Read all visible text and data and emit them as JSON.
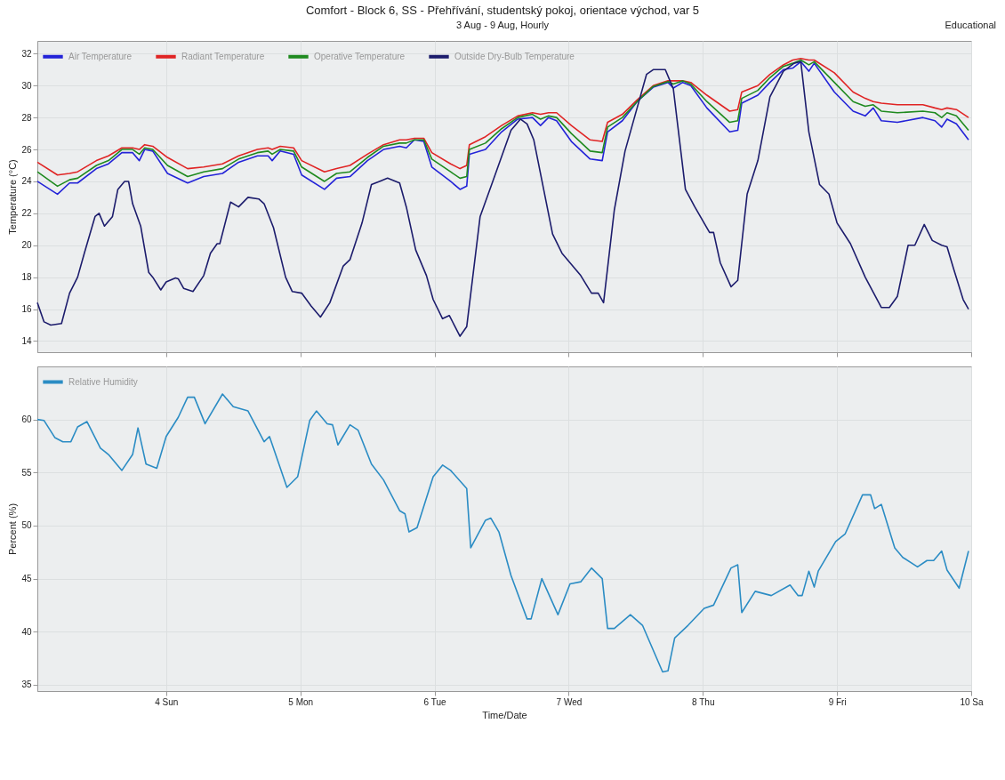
{
  "chart_data": [
    {
      "type": "line",
      "title": "Comfort - Block 6, SS - Přehřívání, studentský pokoj, orientace východ, var 5",
      "subtitle": "3 Aug - 9 Aug, Hourly",
      "annotations": [
        "Educational"
      ],
      "ylabel": "Temperature (°C)",
      "xlim": [
        3.04,
        10
      ],
      "xticks": [
        {
          "value": 4,
          "label": null
        },
        {
          "value": 5,
          "label": null
        },
        {
          "value": 6,
          "label": null
        },
        {
          "value": 7,
          "label": null
        },
        {
          "value": 8,
          "label": null
        },
        {
          "value": 9,
          "label": null
        },
        {
          "value": 10,
          "label": null
        }
      ],
      "ylim": [
        13.3,
        32.8
      ],
      "yticks": [
        14,
        16,
        18,
        20,
        22,
        24,
        26,
        28,
        30,
        32
      ],
      "tick_labels": "y",
      "grid": true,
      "legend": "top left",
      "series": [
        {
          "name": "Air Temperature",
          "color": "#2323d8",
          "x": [
            3.04,
            3.19,
            3.28,
            3.34,
            3.48,
            3.57,
            3.67,
            3.75,
            3.8,
            3.84,
            3.9,
            4.01,
            4.16,
            4.28,
            4.42,
            4.54,
            4.68,
            4.76,
            4.79,
            4.85,
            4.95,
            5.01,
            5.18,
            5.27,
            5.37,
            5.5,
            5.62,
            5.74,
            5.79,
            5.85,
            5.92,
            5.98,
            6.12,
            6.19,
            6.24,
            6.26,
            6.38,
            6.5,
            6.62,
            6.73,
            6.79,
            6.85,
            6.91,
            7.02,
            7.16,
            7.25,
            7.29,
            7.4,
            7.51,
            7.63,
            7.74,
            7.78,
            7.85,
            7.91,
            8.03,
            8.2,
            8.26,
            8.29,
            8.41,
            8.5,
            8.6,
            8.67,
            8.73,
            8.79,
            8.83,
            8.98,
            9.12,
            9.21,
            9.27,
            9.33,
            9.45,
            9.64,
            9.73,
            9.78,
            9.82,
            9.89,
            9.98
          ],
          "values": [
            24.0,
            23.2,
            23.9,
            23.9,
            24.8,
            25.1,
            25.8,
            25.8,
            25.3,
            26.0,
            25.9,
            24.5,
            23.9,
            24.3,
            24.5,
            25.2,
            25.6,
            25.6,
            25.3,
            25.9,
            25.7,
            24.4,
            23.5,
            24.2,
            24.3,
            25.3,
            26.0,
            26.2,
            26.1,
            26.6,
            26.5,
            24.9,
            24.0,
            23.5,
            23.7,
            25.7,
            26.0,
            27.1,
            27.9,
            28.0,
            27.5,
            28.0,
            27.8,
            26.5,
            25.4,
            25.3,
            27.1,
            27.8,
            29.0,
            29.9,
            30.2,
            29.85,
            30.2,
            30.0,
            28.6,
            27.1,
            27.2,
            28.9,
            29.4,
            30.2,
            31.0,
            31.1,
            31.5,
            30.9,
            31.4,
            29.6,
            28.4,
            28.1,
            28.6,
            27.8,
            27.7,
            28.0,
            27.8,
            27.4,
            27.9,
            27.6,
            26.6
          ]
        },
        {
          "name": "Radiant Temperature",
          "color": "#e02424",
          "x": [
            3.04,
            3.19,
            3.28,
            3.34,
            3.48,
            3.57,
            3.67,
            3.75,
            3.8,
            3.84,
            3.9,
            4.01,
            4.16,
            4.28,
            4.42,
            4.54,
            4.68,
            4.76,
            4.79,
            4.85,
            4.95,
            5.01,
            5.18,
            5.27,
            5.37,
            5.5,
            5.62,
            5.74,
            5.79,
            5.85,
            5.92,
            5.98,
            6.12,
            6.19,
            6.24,
            6.26,
            6.38,
            6.5,
            6.62,
            6.73,
            6.79,
            6.85,
            6.91,
            7.02,
            7.16,
            7.25,
            7.29,
            7.4,
            7.51,
            7.63,
            7.74,
            7.78,
            7.85,
            7.91,
            8.03,
            8.2,
            8.26,
            8.29,
            8.41,
            8.5,
            8.6,
            8.67,
            8.73,
            8.79,
            8.83,
            8.98,
            9.12,
            9.21,
            9.27,
            9.33,
            9.45,
            9.64,
            9.73,
            9.78,
            9.82,
            9.89,
            9.98
          ],
          "values": [
            25.2,
            24.4,
            24.5,
            24.6,
            25.3,
            25.6,
            26.1,
            26.1,
            26.0,
            26.3,
            26.2,
            25.5,
            24.8,
            24.9,
            25.1,
            25.6,
            26.0,
            26.1,
            26.0,
            26.2,
            26.1,
            25.3,
            24.6,
            24.8,
            25.0,
            25.7,
            26.3,
            26.6,
            26.6,
            26.7,
            26.7,
            25.8,
            25.1,
            24.8,
            25.0,
            26.3,
            26.8,
            27.5,
            28.1,
            28.3,
            28.2,
            28.3,
            28.3,
            27.5,
            26.6,
            26.5,
            27.7,
            28.2,
            29.1,
            30.0,
            30.3,
            30.3,
            30.3,
            30.2,
            29.4,
            28.4,
            28.5,
            29.6,
            30.0,
            30.7,
            31.3,
            31.6,
            31.7,
            31.6,
            31.6,
            30.8,
            29.6,
            29.2,
            29.0,
            28.9,
            28.8,
            28.8,
            28.6,
            28.5,
            28.6,
            28.5,
            28.0
          ]
        },
        {
          "name": "Operative Temperature",
          "color": "#1f8a1f",
          "x": [
            3.04,
            3.19,
            3.28,
            3.34,
            3.48,
            3.57,
            3.67,
            3.75,
            3.8,
            3.84,
            3.9,
            4.01,
            4.16,
            4.28,
            4.42,
            4.54,
            4.68,
            4.76,
            4.79,
            4.85,
            4.95,
            5.01,
            5.18,
            5.27,
            5.37,
            5.5,
            5.62,
            5.74,
            5.79,
            5.85,
            5.92,
            5.98,
            6.12,
            6.19,
            6.24,
            6.26,
            6.38,
            6.5,
            6.62,
            6.73,
            6.79,
            6.85,
            6.91,
            7.02,
            7.16,
            7.25,
            7.29,
            7.4,
            7.51,
            7.63,
            7.74,
            7.78,
            7.85,
            7.91,
            8.03,
            8.2,
            8.26,
            8.29,
            8.41,
            8.5,
            8.6,
            8.67,
            8.73,
            8.79,
            8.83,
            8.98,
            9.12,
            9.21,
            9.27,
            9.33,
            9.45,
            9.64,
            9.73,
            9.78,
            9.82,
            9.89,
            9.98
          ],
          "values": [
            24.6,
            23.7,
            24.1,
            24.2,
            25.0,
            25.3,
            26.0,
            26.0,
            25.7,
            26.1,
            26.0,
            25.0,
            24.3,
            24.6,
            24.8,
            25.4,
            25.8,
            25.9,
            25.7,
            26.0,
            25.9,
            24.9,
            24.0,
            24.5,
            24.6,
            25.5,
            26.2,
            26.4,
            26.4,
            26.6,
            26.6,
            25.4,
            24.6,
            24.2,
            24.3,
            26.0,
            26.4,
            27.3,
            28.0,
            28.2,
            27.9,
            28.1,
            28.0,
            27.0,
            25.9,
            25.8,
            27.4,
            28.0,
            29.0,
            29.95,
            30.25,
            30.1,
            30.3,
            30.1,
            29.0,
            27.7,
            27.8,
            29.2,
            29.7,
            30.5,
            31.2,
            31.4,
            31.6,
            31.3,
            31.5,
            30.2,
            29.0,
            28.7,
            28.8,
            28.4,
            28.3,
            28.4,
            28.3,
            28.0,
            28.3,
            28.1,
            27.2
          ]
        },
        {
          "name": "Outside Dry-Bulb Temperature",
          "color": "#1c1c6c",
          "x": [
            3.04,
            3.09,
            3.14,
            3.22,
            3.28,
            3.34,
            3.39,
            3.47,
            3.5,
            3.54,
            3.6,
            3.64,
            3.69,
            3.72,
            3.75,
            3.81,
            3.87,
            3.9,
            3.96,
            4.0,
            4.07,
            4.09,
            4.13,
            4.2,
            4.28,
            4.33,
            4.38,
            4.4,
            4.48,
            4.54,
            4.61,
            4.69,
            4.73,
            4.8,
            4.89,
            4.94,
            5.01,
            5.08,
            5.15,
            5.22,
            5.32,
            5.37,
            5.46,
            5.53,
            5.59,
            5.65,
            5.74,
            5.79,
            5.86,
            5.94,
            5.99,
            6.06,
            6.11,
            6.19,
            6.24,
            6.34,
            6.43,
            6.57,
            6.64,
            6.69,
            6.74,
            6.88,
            6.95,
            7.09,
            7.17,
            7.22,
            7.26,
            7.34,
            7.42,
            7.49,
            7.58,
            7.63,
            7.72,
            7.78,
            7.87,
            7.94,
            8.05,
            8.08,
            8.13,
            8.21,
            8.26,
            8.33,
            8.41,
            8.5,
            8.6,
            8.68,
            8.73,
            8.79,
            8.87,
            8.94,
            9.0,
            9.1,
            9.21,
            9.33,
            9.39,
            9.45,
            9.53,
            9.58,
            9.65,
            9.71,
            9.78,
            9.82,
            9.87,
            9.94,
            9.98
          ],
          "values": [
            16.4,
            15.2,
            15.0,
            15.1,
            17.0,
            18.0,
            19.5,
            21.8,
            22.0,
            21.2,
            21.8,
            23.5,
            24.0,
            24.0,
            22.6,
            21.2,
            18.3,
            18.0,
            17.2,
            17.7,
            17.95,
            17.9,
            17.3,
            17.1,
            18.1,
            19.5,
            20.1,
            20.1,
            22.7,
            22.4,
            23.0,
            22.9,
            22.6,
            21.1,
            18.0,
            17.1,
            17.0,
            16.2,
            15.5,
            16.4,
            18.7,
            19.1,
            21.4,
            23.8,
            24.0,
            24.2,
            23.9,
            22.4,
            19.7,
            18.1,
            16.6,
            15.4,
            15.6,
            14.3,
            14.9,
            21.8,
            23.9,
            27.2,
            27.9,
            27.6,
            26.6,
            20.7,
            19.5,
            18.1,
            17.0,
            17.0,
            16.4,
            22.2,
            25.9,
            28.0,
            30.7,
            31.0,
            31.0,
            29.8,
            23.5,
            22.4,
            20.8,
            20.8,
            18.9,
            17.4,
            17.8,
            23.2,
            25.3,
            29.3,
            30.9,
            31.4,
            31.5,
            27.1,
            23.8,
            23.2,
            21.4,
            20.1,
            18.0,
            16.1,
            16.1,
            16.8,
            20.0,
            20.0,
            21.3,
            20.3,
            20.0,
            19.9,
            18.5,
            16.6,
            16.0
          ]
        }
      ]
    },
    {
      "type": "line",
      "xlabel": "Time/Date",
      "ylabel": "Percent (%)",
      "xlim": [
        3.04,
        10
      ],
      "xticks": [
        {
          "value": 4,
          "label": "4 Sun"
        },
        {
          "value": 5,
          "label": "5 Mon"
        },
        {
          "value": 6,
          "label": "6 Tue"
        },
        {
          "value": 7,
          "label": "7 Wed"
        },
        {
          "value": 8,
          "label": "8 Thu"
        },
        {
          "value": 9,
          "label": "9 Fri"
        },
        {
          "value": 10,
          "label": "10 Sa"
        }
      ],
      "ylim": [
        34.4,
        65
      ],
      "yticks": [
        35,
        40,
        45,
        50,
        55,
        60
      ],
      "grid": true,
      "legend": "top left",
      "series": [
        {
          "name": "Relative Humidity",
          "color": "#2b8cc4",
          "x": [
            3.04,
            3.09,
            3.17,
            3.23,
            3.29,
            3.34,
            3.41,
            3.51,
            3.57,
            3.67,
            3.75,
            3.79,
            3.85,
            3.93,
            4.0,
            4.09,
            4.16,
            4.21,
            4.29,
            4.42,
            4.5,
            4.61,
            4.73,
            4.77,
            4.9,
            4.98,
            5.07,
            5.12,
            5.2,
            5.24,
            5.28,
            5.37,
            5.43,
            5.53,
            5.62,
            5.74,
            5.78,
            5.81,
            5.87,
            5.99,
            6.06,
            6.12,
            6.24,
            6.27,
            6.38,
            6.42,
            6.48,
            6.57,
            6.69,
            6.72,
            6.8,
            6.92,
            7.01,
            7.09,
            7.17,
            7.25,
            7.29,
            7.34,
            7.46,
            7.55,
            7.7,
            7.74,
            7.79,
            7.89,
            8.01,
            8.08,
            8.21,
            8.26,
            8.29,
            8.39,
            8.51,
            8.65,
            8.71,
            8.74,
            8.79,
            8.83,
            8.86,
            8.99,
            9.06,
            9.19,
            9.25,
            9.28,
            9.33,
            9.43,
            9.49,
            9.6,
            9.67,
            9.72,
            9.78,
            9.82,
            9.91,
            9.98
          ],
          "values": [
            60.0,
            59.9,
            58.3,
            57.9,
            57.9,
            59.3,
            59.8,
            57.3,
            56.7,
            55.2,
            56.7,
            59.2,
            55.8,
            55.4,
            58.4,
            60.2,
            62.1,
            62.1,
            59.6,
            62.4,
            61.2,
            60.8,
            57.9,
            58.4,
            53.6,
            54.6,
            59.9,
            60.8,
            59.6,
            59.5,
            57.6,
            59.5,
            59.0,
            55.8,
            54.3,
            51.4,
            51.1,
            49.4,
            49.8,
            54.6,
            55.7,
            55.2,
            53.5,
            47.9,
            50.5,
            50.7,
            49.4,
            45.3,
            41.2,
            41.2,
            45.0,
            41.6,
            44.5,
            44.7,
            46.0,
            45.0,
            40.3,
            40.3,
            41.6,
            40.6,
            36.2,
            36.3,
            39.4,
            40.6,
            42.2,
            42.5,
            46.0,
            46.3,
            41.8,
            43.8,
            43.4,
            44.4,
            43.4,
            43.4,
            45.7,
            44.2,
            45.7,
            48.5,
            49.2,
            52.9,
            52.9,
            51.6,
            52.0,
            47.9,
            47.0,
            46.1,
            46.7,
            46.7,
            47.6,
            45.8,
            44.1,
            47.6
          ]
        }
      ]
    }
  ]
}
